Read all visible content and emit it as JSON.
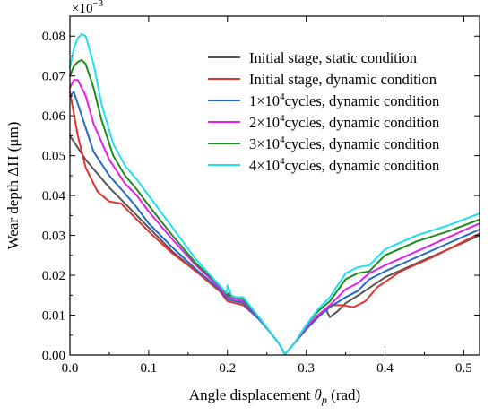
{
  "chart_data": {
    "type": "line",
    "title": "",
    "xlabel": {
      "prefix": "Angle displacement ",
      "symbol": "θ",
      "sub": "p",
      "suffix": " (rad)"
    },
    "ylabel": "Wear depth ΔH (μm)",
    "multiplier": {
      "base": "×10",
      "exp": "−3"
    },
    "xlim": [
      0,
      0.52
    ],
    "ylim": [
      0,
      0.085
    ],
    "xticks": [
      0.0,
      0.1,
      0.2,
      0.3,
      0.4,
      0.5
    ],
    "xtick_labels": [
      "0.0",
      "0.1",
      "0.2",
      "0.3",
      "0.4",
      "0.5"
    ],
    "yticks": [
      0.0,
      0.01,
      0.02,
      0.03,
      0.04,
      0.05,
      0.06,
      0.07,
      0.08
    ],
    "ytick_labels": [
      "0.00",
      "0.01",
      "0.02",
      "0.03",
      "0.04",
      "0.05",
      "0.06",
      "0.07",
      "0.08"
    ],
    "grid": false,
    "legend_position": "top-right",
    "series": [
      {
        "name": {
          "pre": "Initial stage, static condition",
          "sup": "",
          "post": ""
        },
        "color": "#555555",
        "x": [
          0,
          0.02,
          0.05,
          0.08,
          0.1,
          0.13,
          0.16,
          0.19,
          0.205,
          0.22,
          0.24,
          0.255,
          0.265,
          0.273,
          0.285,
          0.3,
          0.315,
          0.325,
          0.33,
          0.34,
          0.35,
          0.37,
          0.4,
          0.44,
          0.48,
          0.52
        ],
        "y": [
          0.055,
          0.049,
          0.042,
          0.036,
          0.032,
          0.026,
          0.021,
          0.0165,
          0.015,
          0.013,
          0.009,
          0.0055,
          0.003,
          0.0002,
          0.003,
          0.0065,
          0.0095,
          0.0115,
          0.0095,
          0.011,
          0.013,
          0.0155,
          0.0195,
          0.023,
          0.0265,
          0.03
        ]
      },
      {
        "name": {
          "pre": "Initial stage, dynamic condition",
          "sup": "",
          "post": ""
        },
        "color": "#e5322d",
        "x": [
          0,
          0.01,
          0.02,
          0.035,
          0.05,
          0.065,
          0.08,
          0.1,
          0.13,
          0.16,
          0.19,
          0.2,
          0.21,
          0.22,
          0.24,
          0.255,
          0.265,
          0.273,
          0.285,
          0.3,
          0.315,
          0.33,
          0.345,
          0.36,
          0.375,
          0.39,
          0.42,
          0.46,
          0.5,
          0.52
        ],
        "y": [
          0.066,
          0.055,
          0.047,
          0.041,
          0.0385,
          0.038,
          0.035,
          0.031,
          0.0255,
          0.021,
          0.016,
          0.0135,
          0.013,
          0.0125,
          0.009,
          0.0055,
          0.003,
          0.0002,
          0.003,
          0.0065,
          0.0095,
          0.0125,
          0.0125,
          0.012,
          0.0135,
          0.017,
          0.021,
          0.0245,
          0.0285,
          0.0305
        ]
      },
      {
        "name": {
          "pre": "1×10",
          "sup": "4",
          "post": "cycles, dynamic condition"
        },
        "color": "#2569c8",
        "x": [
          0,
          0.005,
          0.01,
          0.02,
          0.03,
          0.05,
          0.07,
          0.085,
          0.1,
          0.13,
          0.16,
          0.19,
          0.2,
          0.21,
          0.22,
          0.24,
          0.255,
          0.265,
          0.273,
          0.285,
          0.3,
          0.315,
          0.33,
          0.35,
          0.365,
          0.38,
          0.4,
          0.44,
          0.48,
          0.52
        ],
        "y": [
          0.065,
          0.066,
          0.063,
          0.057,
          0.051,
          0.045,
          0.0405,
          0.037,
          0.033,
          0.027,
          0.0215,
          0.0165,
          0.014,
          0.0135,
          0.013,
          0.009,
          0.0055,
          0.003,
          0.0002,
          0.003,
          0.0065,
          0.0095,
          0.012,
          0.0145,
          0.016,
          0.019,
          0.021,
          0.0245,
          0.028,
          0.0315
        ]
      },
      {
        "name": {
          "pre": "2×10",
          "sup": "4",
          "post": "cycles, dynamic condition"
        },
        "color": "#e81ee8",
        "x": [
          0,
          0.005,
          0.01,
          0.02,
          0.03,
          0.05,
          0.07,
          0.085,
          0.1,
          0.13,
          0.16,
          0.19,
          0.2,
          0.21,
          0.22,
          0.24,
          0.255,
          0.265,
          0.273,
          0.285,
          0.3,
          0.315,
          0.33,
          0.35,
          0.365,
          0.38,
          0.4,
          0.44,
          0.48,
          0.52
        ],
        "y": [
          0.067,
          0.069,
          0.069,
          0.065,
          0.058,
          0.049,
          0.043,
          0.04,
          0.036,
          0.029,
          0.0225,
          0.017,
          0.0145,
          0.014,
          0.0135,
          0.0095,
          0.0055,
          0.003,
          0.0002,
          0.003,
          0.007,
          0.01,
          0.0125,
          0.0165,
          0.018,
          0.0205,
          0.0225,
          0.026,
          0.0295,
          0.033
        ]
      },
      {
        "name": {
          "pre": "3×10",
          "sup": "4",
          "post": "cycles, dynamic condition"
        },
        "color": "#1c8c1c",
        "x": [
          0,
          0.005,
          0.01,
          0.015,
          0.02,
          0.03,
          0.04,
          0.055,
          0.07,
          0.085,
          0.1,
          0.13,
          0.16,
          0.19,
          0.2,
          0.21,
          0.22,
          0.24,
          0.255,
          0.265,
          0.273,
          0.285,
          0.3,
          0.315,
          0.33,
          0.35,
          0.365,
          0.38,
          0.4,
          0.44,
          0.48,
          0.52
        ],
        "y": [
          0.07,
          0.0725,
          0.0735,
          0.074,
          0.073,
          0.067,
          0.059,
          0.05,
          0.045,
          0.0415,
          0.0375,
          0.03,
          0.023,
          0.0175,
          0.015,
          0.0145,
          0.014,
          0.0095,
          0.0055,
          0.003,
          0.0002,
          0.003,
          0.0075,
          0.011,
          0.0135,
          0.019,
          0.0205,
          0.021,
          0.025,
          0.0285,
          0.031,
          0.034
        ]
      },
      {
        "name": {
          "pre": "4×10",
          "sup": "4",
          "post": "cycles, dynamic condition"
        },
        "color": "#1ee0ee",
        "x": [
          0,
          0.005,
          0.01,
          0.015,
          0.02,
          0.03,
          0.04,
          0.055,
          0.07,
          0.085,
          0.1,
          0.13,
          0.16,
          0.19,
          0.199,
          0.2,
          0.205,
          0.21,
          0.22,
          0.24,
          0.255,
          0.265,
          0.273,
          0.285,
          0.3,
          0.315,
          0.33,
          0.35,
          0.365,
          0.38,
          0.4,
          0.44,
          0.48,
          0.52
        ],
        "y": [
          0.072,
          0.077,
          0.0795,
          0.0805,
          0.08,
          0.073,
          0.063,
          0.053,
          0.0475,
          0.044,
          0.04,
          0.032,
          0.024,
          0.0175,
          0.0155,
          0.0175,
          0.015,
          0.0145,
          0.0145,
          0.0095,
          0.0055,
          0.003,
          0.0002,
          0.003,
          0.0075,
          0.0115,
          0.0145,
          0.0205,
          0.022,
          0.0225,
          0.0265,
          0.03,
          0.0325,
          0.0355
        ]
      }
    ]
  }
}
